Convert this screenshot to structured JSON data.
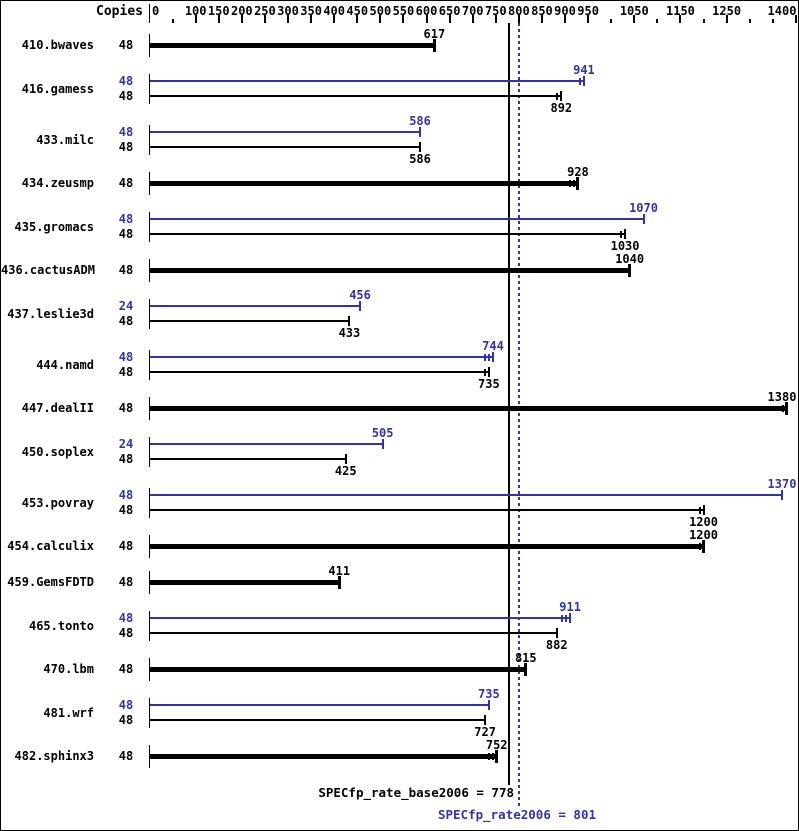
{
  "header": {
    "copies_label": "Copies"
  },
  "colors": {
    "peak": "#3333a8",
    "base": "#000000",
    "background": "#ffffff"
  },
  "chart_data": {
    "type": "bar",
    "orientation": "horizontal",
    "x_axis": {
      "min": 0,
      "max": 1400,
      "labeled_ticks": [
        0,
        100,
        150,
        200,
        250,
        300,
        350,
        400,
        450,
        500,
        550,
        600,
        650,
        700,
        750,
        800,
        850,
        900,
        950,
        1050,
        1150,
        1250,
        1400
      ],
      "minor_ticks": [
        50,
        1000,
        1100,
        1200,
        1300,
        1350
      ]
    },
    "series_legend": {
      "peak": "blue thin bar (peak result)",
      "base": "black bar (base result, bold when only bar shown)"
    },
    "benchmarks": [
      {
        "name": "410.bwaves",
        "bars": [
          {
            "type": "base",
            "copies": 48,
            "value": 617,
            "bold": true,
            "marks": 1
          }
        ]
      },
      {
        "name": "416.gamess",
        "bars": [
          {
            "type": "peak",
            "copies": 48,
            "value": 941,
            "bold": false,
            "marks": 2
          },
          {
            "type": "base",
            "copies": 48,
            "value": 892,
            "bold": false,
            "marks": 2
          }
        ]
      },
      {
        "name": "433.milc",
        "bars": [
          {
            "type": "peak",
            "copies": 48,
            "value": 586,
            "bold": false,
            "marks": 1
          },
          {
            "type": "base",
            "copies": 48,
            "value": 586,
            "bold": false,
            "marks": 1
          }
        ]
      },
      {
        "name": "434.zeusmp",
        "bars": [
          {
            "type": "base",
            "copies": 48,
            "value": 928,
            "bold": true,
            "marks": 3
          }
        ]
      },
      {
        "name": "435.gromacs",
        "bars": [
          {
            "type": "peak",
            "copies": 48,
            "value": 1070,
            "bold": false,
            "marks": 1
          },
          {
            "type": "base",
            "copies": 48,
            "value": 1030,
            "bold": false,
            "marks": 2
          }
        ]
      },
      {
        "name": "436.cactusADM",
        "bars": [
          {
            "type": "base",
            "copies": 48,
            "value": 1040,
            "bold": true,
            "marks": 1
          }
        ]
      },
      {
        "name": "437.leslie3d",
        "bars": [
          {
            "type": "peak",
            "copies": 24,
            "value": 456,
            "bold": false,
            "marks": 1
          },
          {
            "type": "base",
            "copies": 48,
            "value": 433,
            "bold": false,
            "marks": 1
          }
        ]
      },
      {
        "name": "444.namd",
        "bars": [
          {
            "type": "peak",
            "copies": 48,
            "value": 744,
            "bold": false,
            "marks": 3
          },
          {
            "type": "base",
            "copies": 48,
            "value": 735,
            "bold": false,
            "marks": 2
          }
        ]
      },
      {
        "name": "447.dealII",
        "bars": [
          {
            "type": "base",
            "copies": 48,
            "value": 1380,
            "bold": true,
            "marks": 2
          }
        ]
      },
      {
        "name": "450.soplex",
        "bars": [
          {
            "type": "peak",
            "copies": 24,
            "value": 505,
            "bold": false,
            "marks": 1
          },
          {
            "type": "base",
            "copies": 48,
            "value": 425,
            "bold": false,
            "marks": 1
          }
        ]
      },
      {
        "name": "453.povray",
        "bars": [
          {
            "type": "peak",
            "copies": 48,
            "value": 1370,
            "bold": false,
            "marks": 1
          },
          {
            "type": "base",
            "copies": 48,
            "value": 1200,
            "bold": false,
            "marks": 2
          }
        ]
      },
      {
        "name": "454.calculix",
        "bars": [
          {
            "type": "base",
            "copies": 48,
            "value": 1200,
            "bold": true,
            "marks": 2
          }
        ]
      },
      {
        "name": "459.GemsFDTD",
        "bars": [
          {
            "type": "base",
            "copies": 48,
            "value": 411,
            "bold": true,
            "marks": 1
          }
        ]
      },
      {
        "name": "465.tonto",
        "bars": [
          {
            "type": "peak",
            "copies": 48,
            "value": 911,
            "bold": false,
            "marks": 3
          },
          {
            "type": "base",
            "copies": 48,
            "value": 882,
            "bold": false,
            "marks": 1
          }
        ]
      },
      {
        "name": "470.lbm",
        "bars": [
          {
            "type": "base",
            "copies": 48,
            "value": 815,
            "bold": true,
            "marks": 1
          }
        ]
      },
      {
        "name": "481.wrf",
        "bars": [
          {
            "type": "peak",
            "copies": 48,
            "value": 735,
            "bold": false,
            "marks": 1
          },
          {
            "type": "base",
            "copies": 48,
            "value": 727,
            "bold": false,
            "marks": 1
          }
        ]
      },
      {
        "name": "482.sphinx3",
        "bars": [
          {
            "type": "base",
            "copies": 48,
            "value": 752,
            "bold": true,
            "marks": 3
          }
        ]
      }
    ],
    "summary": {
      "base_value": 778,
      "peak_value": 801,
      "base_text": "SPECfp_rate_base2006 = 778",
      "peak_text": "SPECfp_rate2006 = 801"
    }
  }
}
